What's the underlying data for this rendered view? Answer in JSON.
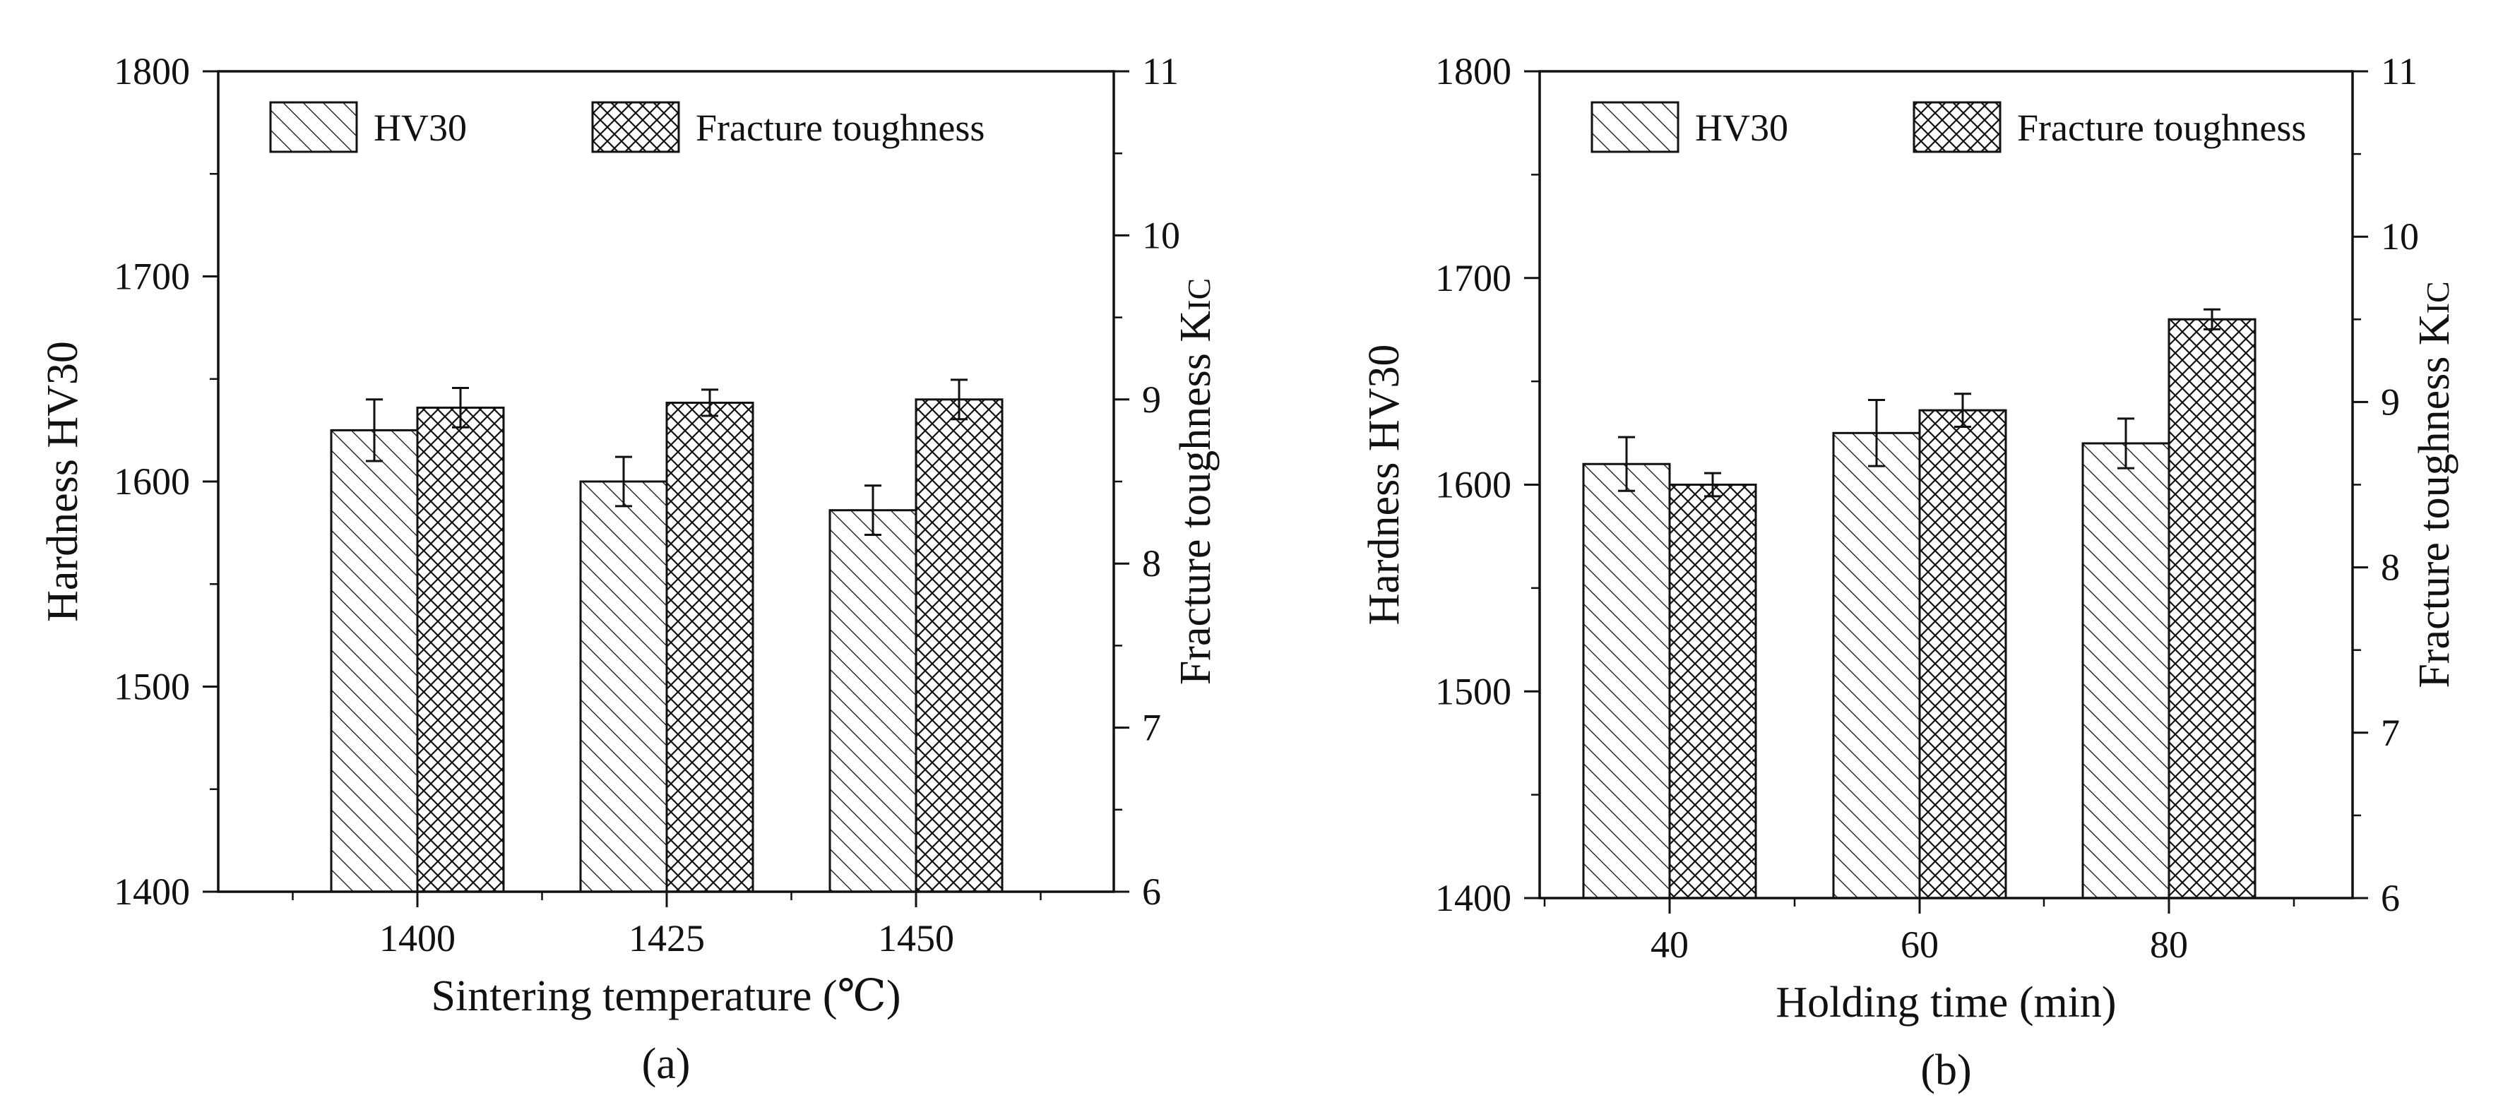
{
  "figure": {
    "colors": {
      "ink": "#111111",
      "bar_fill": "#ffffff",
      "background": "#ffffff"
    }
  },
  "chart_data": [
    {
      "type": "bar",
      "panel_label": "(a)",
      "xlabel": "Sintering temperature (℃)",
      "ylabel_left": "Hardness HV30",
      "ylabel_right_main": "Fracture toughness K",
      "ylabel_right_sub": "IC",
      "categories": [
        "1400",
        "1425",
        "1450"
      ],
      "y_left": {
        "min": 1400,
        "max": 1800,
        "ticks": [
          1400,
          1500,
          1600,
          1700,
          1800
        ]
      },
      "y_right": {
        "min": 6,
        "max": 11,
        "ticks": [
          6,
          7,
          8,
          9,
          10,
          11
        ]
      },
      "legend_position": "top-left",
      "series": [
        {
          "name": "HV30",
          "axis": "left",
          "pattern": "diagonal-hatch",
          "values": [
            1625,
            1600,
            1586
          ],
          "errors": [
            15,
            12,
            12
          ]
        },
        {
          "name": "Fracture toughness",
          "axis": "right",
          "pattern": "cross-hatch",
          "values": [
            8.95,
            8.98,
            9.0
          ],
          "errors": [
            0.12,
            0.08,
            0.12
          ]
        }
      ]
    },
    {
      "type": "bar",
      "panel_label": "(b)",
      "xlabel": "Holding time (min)",
      "ylabel_left": "Hardness HV30",
      "ylabel_right_main": "Fracture toughness K",
      "ylabel_right_sub": "IC",
      "categories": [
        "40",
        "60",
        "80"
      ],
      "y_left": {
        "min": 1400,
        "max": 1800,
        "ticks": [
          1400,
          1500,
          1600,
          1700,
          1800
        ]
      },
      "y_right": {
        "min": 6,
        "max": 11,
        "ticks": [
          6,
          7,
          8,
          9,
          10,
          11
        ]
      },
      "legend_position": "top-left",
      "series": [
        {
          "name": "HV30",
          "axis": "left",
          "pattern": "diagonal-hatch",
          "values": [
            1610,
            1625,
            1620
          ],
          "errors": [
            13,
            16,
            12
          ]
        },
        {
          "name": "Fracture toughness",
          "axis": "right",
          "pattern": "cross-hatch",
          "values": [
            8.5,
            8.95,
            9.5
          ],
          "errors": [
            0.07,
            0.1,
            0.06
          ]
        }
      ]
    }
  ]
}
